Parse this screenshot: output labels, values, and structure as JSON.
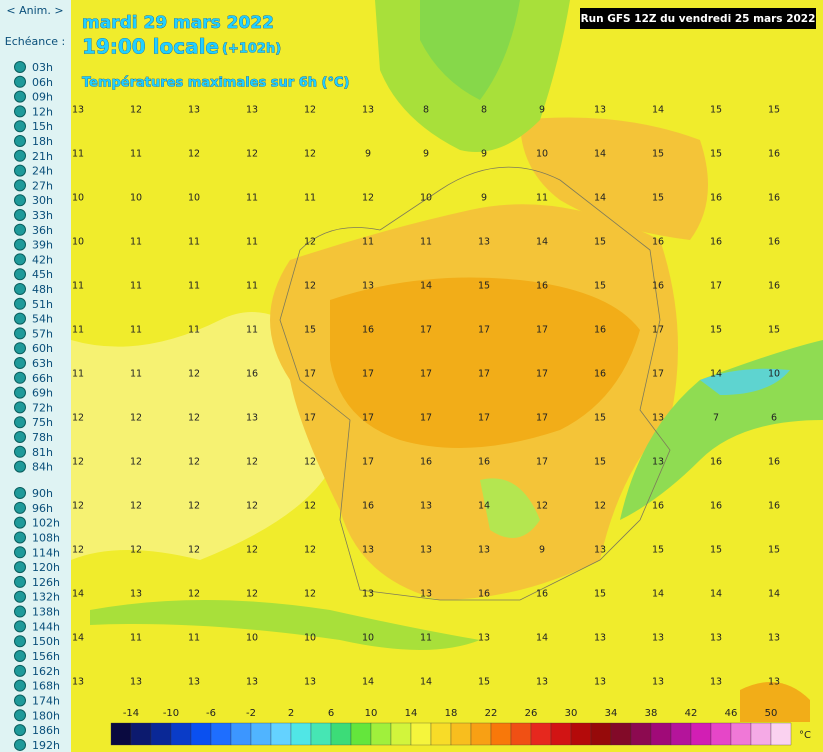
{
  "sidebar": {
    "anim": "< Anim. >",
    "echeance_label": "Echéance :",
    "hours": [
      "03h",
      "06h",
      "09h",
      "12h",
      "15h",
      "18h",
      "21h",
      "24h",
      "27h",
      "30h",
      "33h",
      "36h",
      "39h",
      "42h",
      "45h",
      "48h",
      "51h",
      "54h",
      "57h",
      "60h",
      "63h",
      "66h",
      "69h",
      "72h",
      "75h",
      "78h",
      "81h",
      "84h",
      "90h",
      "96h",
      "102h",
      "108h",
      "114h",
      "120h",
      "126h",
      "132h",
      "138h",
      "144h",
      "150h",
      "156h",
      "162h",
      "168h",
      "174h",
      "180h",
      "186h",
      "192h"
    ]
  },
  "header": {
    "date": "mardi 29 mars 2022",
    "time": "19:00 locale",
    "offset": "(+102h)",
    "subtitle": "Températures maximales sur 6h (°C)",
    "run": "Run GFS 12Z du vendredi 25 mars 2022"
  },
  "map": {
    "grid": [
      [
        13,
        12,
        13,
        13,
        12,
        13,
        8,
        8,
        9,
        13,
        14,
        15,
        15
      ],
      [
        11,
        11,
        12,
        12,
        12,
        9,
        9,
        9,
        10,
        14,
        15,
        15,
        16
      ],
      [
        10,
        10,
        10,
        11,
        11,
        12,
        10,
        9,
        11,
        14,
        15,
        16,
        16
      ],
      [
        10,
        11,
        11,
        11,
        12,
        11,
        11,
        13,
        14,
        15,
        16,
        16,
        16
      ],
      [
        11,
        11,
        11,
        11,
        12,
        13,
        14,
        15,
        16,
        15,
        16,
        17,
        16
      ],
      [
        11,
        11,
        11,
        11,
        15,
        16,
        17,
        17,
        17,
        16,
        17,
        15,
        15
      ],
      [
        11,
        11,
        12,
        16,
        17,
        17,
        17,
        17,
        17,
        16,
        17,
        14,
        10
      ],
      [
        12,
        12,
        12,
        13,
        17,
        17,
        17,
        17,
        17,
        15,
        13,
        7,
        6
      ],
      [
        12,
        12,
        12,
        12,
        12,
        17,
        16,
        16,
        17,
        15,
        13,
        16,
        16
      ],
      [
        12,
        12,
        12,
        12,
        12,
        16,
        13,
        14,
        12,
        12,
        16,
        16,
        16
      ],
      [
        12,
        12,
        12,
        12,
        12,
        13,
        13,
        13,
        9,
        13,
        15,
        15,
        15
      ],
      [
        14,
        13,
        12,
        12,
        12,
        13,
        13,
        16,
        16,
        15,
        14,
        14,
        14
      ],
      [
        14,
        11,
        11,
        10,
        10,
        10,
        11,
        13,
        14,
        13,
        13,
        13,
        13
      ],
      [
        13,
        13,
        13,
        13,
        13,
        14,
        14,
        15,
        13,
        13,
        13,
        13,
        13
      ]
    ]
  },
  "legend": {
    "labels": [
      -14,
      -10,
      -6,
      -2,
      2,
      6,
      10,
      14,
      18,
      22,
      26,
      30,
      34,
      38,
      42,
      46,
      50
    ],
    "unit": "°C",
    "start": -16,
    "step": 2,
    "colors": [
      "#0a0a40",
      "#0c1a6e",
      "#0a2896",
      "#0a3cc8",
      "#0a50f0",
      "#1e6eff",
      "#3c96ff",
      "#50b4ff",
      "#64d2ff",
      "#50e6e6",
      "#46e6b4",
      "#3cdc78",
      "#64e63c",
      "#a0f03c",
      "#d2f53c",
      "#f5f53c",
      "#f8dc28",
      "#f8be1e",
      "#f8a014",
      "#f8780a",
      "#f05014",
      "#e6281e",
      "#d21414",
      "#b40a0a",
      "#960a0a",
      "#820a28",
      "#8c0a50",
      "#a00a78",
      "#b4149b",
      "#d21eb4",
      "#e646c8",
      "#f078d7",
      "#f5aae6",
      "#fad2f0"
    ]
  }
}
